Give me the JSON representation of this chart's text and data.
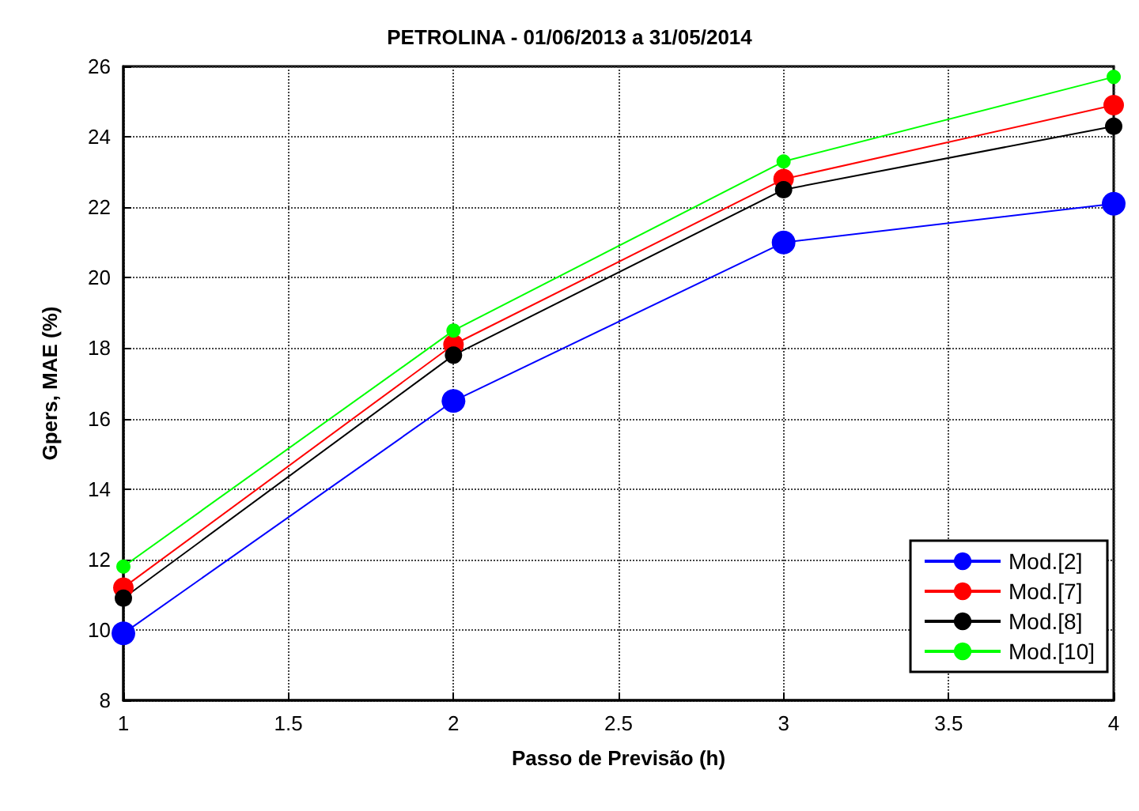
{
  "chart_data": {
    "type": "line",
    "title": "PETROLINA - 01/06/2013 a 31/05/2014",
    "xlabel": "Passo de Previsão (h)",
    "ylabel": "Gpers, MAE (%)",
    "x": [
      1,
      2,
      3,
      4
    ],
    "series": [
      {
        "name": "Mod.[2]",
        "color": "#0000ff",
        "values": [
          9.9,
          16.5,
          21.0,
          22.1
        ]
      },
      {
        "name": "Mod.[7]",
        "color": "#ff0000",
        "values": [
          11.2,
          18.1,
          22.8,
          24.9
        ]
      },
      {
        "name": "Mod.[8]",
        "color": "#000000",
        "values": [
          10.9,
          17.8,
          22.5,
          24.3
        ]
      },
      {
        "name": "Mod.[10]",
        "color": "#00ff00",
        "values": [
          11.8,
          18.5,
          23.3,
          25.7
        ]
      }
    ],
    "xlim": [
      1,
      4
    ],
    "xticks": [
      1,
      1.5,
      2,
      2.5,
      3,
      3.5,
      4
    ],
    "ylim": [
      8,
      26
    ],
    "yticks": [
      8,
      10,
      12,
      14,
      16,
      18,
      20,
      22,
      24,
      26
    ],
    "grid": true,
    "legend": "bottom right",
    "marker": "circle",
    "line_style": "solid"
  }
}
